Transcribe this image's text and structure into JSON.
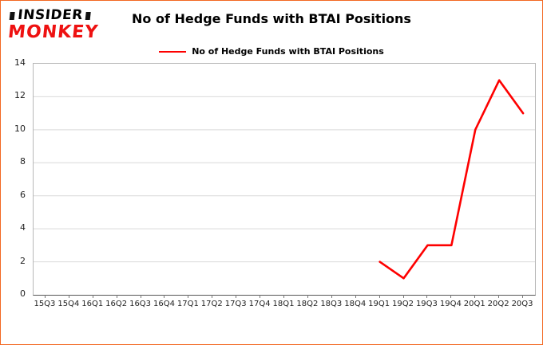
{
  "logo": {
    "line1": "INSIDER",
    "line2": "MONKEY"
  },
  "colors": {
    "border": "#f26822",
    "line": "#fe0000",
    "grid": "#d9d9d9",
    "logo_red": "#ee1111"
  },
  "chart_data": {
    "type": "line",
    "title": "No of Hedge Funds with BTAI Positions",
    "xlabel": "",
    "ylabel": "",
    "ylim": [
      0,
      14
    ],
    "yticks": [
      0,
      2,
      4,
      6,
      8,
      10,
      12,
      14
    ],
    "grid": true,
    "legend_position": "top",
    "categories": [
      "15Q3",
      "15Q4",
      "16Q1",
      "16Q2",
      "16Q3",
      "16Q4",
      "17Q1",
      "17Q2",
      "17Q3",
      "17Q4",
      "18Q1",
      "18Q2",
      "18Q3",
      "18Q4",
      "19Q1",
      "19Q2",
      "19Q3",
      "19Q4",
      "20Q1",
      "20Q2",
      "20Q3"
    ],
    "series": [
      {
        "name": "No of Hedge Funds with BTAI Positions",
        "color": "#fe0000",
        "values": [
          null,
          null,
          null,
          null,
          null,
          null,
          null,
          null,
          null,
          null,
          null,
          null,
          null,
          null,
          2,
          1,
          3,
          3,
          10,
          13,
          11
        ]
      }
    ]
  }
}
